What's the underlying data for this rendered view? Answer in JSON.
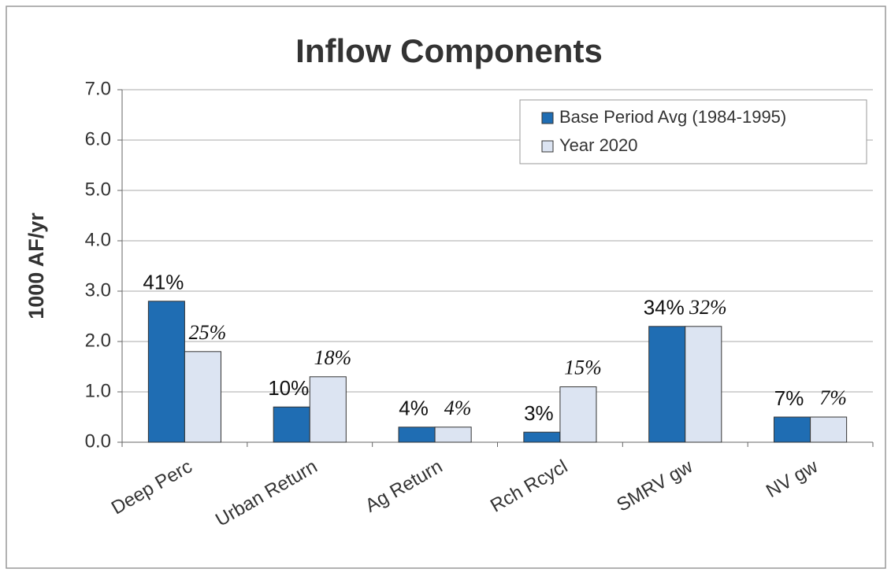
{
  "chart_data": {
    "type": "bar",
    "title": "Inflow Components",
    "y_label": "1000 AF/yr",
    "categories": [
      "Deep Perc",
      "Urban Return",
      "Ag Return",
      "Rch Rcycl",
      "SMRV gw",
      "NV gw"
    ],
    "series": [
      {
        "name": "Base Period Avg (1984-1995)",
        "color": "#1f6db3",
        "values": [
          2.8,
          0.7,
          0.3,
          0.2,
          2.3,
          0.5
        ],
        "annotations": [
          "41%",
          "10%",
          "4%",
          "3%",
          "34%",
          "7%"
        ]
      },
      {
        "name": "Year 2020",
        "color": "#dce4f2",
        "values": [
          1.8,
          1.3,
          0.3,
          1.1,
          2.3,
          0.5
        ],
        "annotations": [
          "25%",
          "18%",
          "4%",
          "15%",
          "32%",
          "7%"
        ]
      }
    ],
    "ylim": [
      0,
      7
    ],
    "yticks": [
      {
        "value": 0,
        "label": "0.0"
      },
      {
        "value": 1,
        "label": "1.0"
      },
      {
        "value": 2,
        "label": "2.0"
      },
      {
        "value": 3,
        "label": "3.0"
      },
      {
        "value": 4,
        "label": "4.0"
      },
      {
        "value": 5,
        "label": "5.0"
      },
      {
        "value": 6,
        "label": "6.0"
      },
      {
        "value": 7,
        "label": "7.0"
      }
    ],
    "grid": true,
    "legend": "top-right"
  }
}
